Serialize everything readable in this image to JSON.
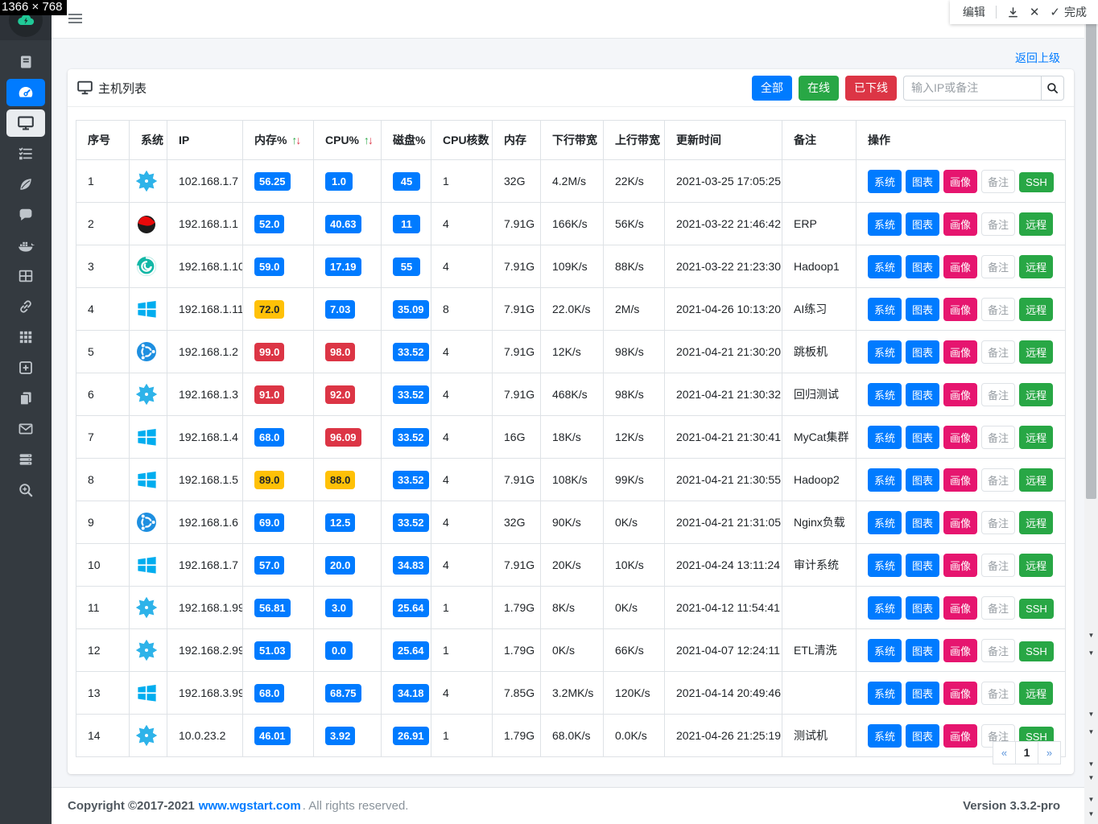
{
  "overlay": {
    "resolution_badge": "1366 × 768",
    "annotation_toolbar": {
      "edit": "编辑",
      "done": "完成"
    }
  },
  "colors": {
    "primary": "#007bff",
    "success": "#28a745",
    "danger": "#dc3545",
    "warning": "#ffc107",
    "pink": "#e6156f",
    "sidebar": "#343a40"
  },
  "sidebar": {
    "items": [
      {
        "id": "logbook",
        "state": ""
      },
      {
        "id": "dashboard",
        "state": "active"
      },
      {
        "id": "hosts",
        "state": "selected"
      },
      {
        "id": "tasks",
        "state": ""
      },
      {
        "id": "leaf",
        "state": ""
      },
      {
        "id": "chat",
        "state": ""
      },
      {
        "id": "docker",
        "state": ""
      },
      {
        "id": "grid-table",
        "state": ""
      },
      {
        "id": "link",
        "state": ""
      },
      {
        "id": "apps",
        "state": ""
      },
      {
        "id": "add-square",
        "state": ""
      },
      {
        "id": "copy",
        "state": ""
      },
      {
        "id": "mail",
        "state": ""
      },
      {
        "id": "servers",
        "state": ""
      },
      {
        "id": "zoom-search",
        "state": ""
      }
    ]
  },
  "page": {
    "back_link": "返回上级"
  },
  "card": {
    "title": "主机列表",
    "filters": [
      {
        "id": "all",
        "label": "全部",
        "color": "#007bff"
      },
      {
        "id": "online",
        "label": "在线",
        "color": "#28a745"
      },
      {
        "id": "offline",
        "label": "已下线",
        "color": "#dc3545"
      }
    ],
    "search": {
      "placeholder": "输入IP或备注"
    },
    "table": {
      "columns": [
        {
          "label": "序号"
        },
        {
          "label": "系统"
        },
        {
          "label": "IP"
        },
        {
          "label": "内存%",
          "sortable": true
        },
        {
          "label": "CPU%",
          "sortable": true
        },
        {
          "label": "磁盘%"
        },
        {
          "label": "CPU核数"
        },
        {
          "label": "内存"
        },
        {
          "label": "下行带宽"
        },
        {
          "label": "上行带宽"
        },
        {
          "label": "更新时间"
        },
        {
          "label": "备注"
        },
        {
          "label": "操作"
        }
      ],
      "action_labels": [
        "系统",
        "图表",
        "画像",
        "备注"
      ],
      "rows": [
        {
          "no": "1",
          "os": "star",
          "ip": "102.168.1.7",
          "mem": "56.25",
          "mem_level": "blue",
          "cpu": "1.0",
          "cpu_level": "blue",
          "disk": "45",
          "disk_level": "blue",
          "cores": "1",
          "ram": "32G",
          "down": "4.2M/s",
          "up": "22K/s",
          "updated": "2021-03-25 17:05:25",
          "note": "",
          "remote": "SSH"
        },
        {
          "no": "2",
          "os": "redhat",
          "ip": "192.168.1.1",
          "mem": "52.0",
          "mem_level": "blue",
          "cpu": "40.63",
          "cpu_level": "blue",
          "disk": "11",
          "disk_level": "blue",
          "cores": "4",
          "ram": "7.91G",
          "down": "166K/s",
          "up": "56K/s",
          "updated": "2021-03-22 21:46:42",
          "note": "ERP",
          "remote": "远程"
        },
        {
          "no": "3",
          "os": "deepin",
          "ip": "192.168.1.10",
          "mem": "59.0",
          "mem_level": "blue",
          "cpu": "17.19",
          "cpu_level": "blue",
          "disk": "55",
          "disk_level": "blue",
          "cores": "4",
          "ram": "7.91G",
          "down": "109K/s",
          "up": "88K/s",
          "updated": "2021-03-22 21:23:30",
          "note": "Hadoop1",
          "remote": "远程"
        },
        {
          "no": "4",
          "os": "windows",
          "ip": "192.168.1.11",
          "mem": "72.0",
          "mem_level": "yellow",
          "cpu": "7.03",
          "cpu_level": "blue",
          "disk": "35.09",
          "disk_level": "blue",
          "cores": "8",
          "ram": "7.91G",
          "down": "22.0K/s",
          "up": "2M/s",
          "updated": "2021-04-26 10:13:20",
          "note": "AI练习",
          "remote": "远程"
        },
        {
          "no": "5",
          "os": "ubuntu",
          "ip": "192.168.1.2",
          "mem": "99.0",
          "mem_level": "red",
          "cpu": "98.0",
          "cpu_level": "red",
          "disk": "33.52",
          "disk_level": "blue",
          "cores": "4",
          "ram": "7.91G",
          "down": "12K/s",
          "up": "98K/s",
          "updated": "2021-04-21 21:30:20",
          "note": "跳板机",
          "remote": "远程"
        },
        {
          "no": "6",
          "os": "star",
          "ip": "192.168.1.3",
          "mem": "91.0",
          "mem_level": "red",
          "cpu": "92.0",
          "cpu_level": "red",
          "disk": "33.52",
          "disk_level": "blue",
          "cores": "4",
          "ram": "7.91G",
          "down": "468K/s",
          "up": "98K/s",
          "updated": "2021-04-21 21:30:32",
          "note": "回归测试",
          "remote": "远程"
        },
        {
          "no": "7",
          "os": "windows",
          "ip": "192.168.1.4",
          "mem": "68.0",
          "mem_level": "blue",
          "cpu": "96.09",
          "cpu_level": "red",
          "disk": "33.52",
          "disk_level": "blue",
          "cores": "4",
          "ram": "16G",
          "down": "18K/s",
          "up": "12K/s",
          "updated": "2021-04-21 21:30:41",
          "note": "MyCat集群",
          "remote": "远程"
        },
        {
          "no": "8",
          "os": "windows",
          "ip": "192.168.1.5",
          "mem": "89.0",
          "mem_level": "yellow",
          "cpu": "88.0",
          "cpu_level": "yellow",
          "disk": "33.52",
          "disk_level": "blue",
          "cores": "4",
          "ram": "7.91G",
          "down": "108K/s",
          "up": "99K/s",
          "updated": "2021-04-21 21:30:55",
          "note": "Hadoop2",
          "remote": "远程"
        },
        {
          "no": "9",
          "os": "ubuntu",
          "ip": "192.168.1.6",
          "mem": "69.0",
          "mem_level": "blue",
          "cpu": "12.5",
          "cpu_level": "blue",
          "disk": "33.52",
          "disk_level": "blue",
          "cores": "4",
          "ram": "32G",
          "down": "90K/s",
          "up": "0K/s",
          "updated": "2021-04-21 21:31:05",
          "note": "Nginx负载",
          "remote": "远程"
        },
        {
          "no": "10",
          "os": "windows",
          "ip": "192.168.1.7",
          "mem": "57.0",
          "mem_level": "blue",
          "cpu": "20.0",
          "cpu_level": "blue",
          "disk": "34.83",
          "disk_level": "blue",
          "cores": "4",
          "ram": "7.91G",
          "down": "20K/s",
          "up": "10K/s",
          "updated": "2021-04-24 13:11:24",
          "note": "审计系统",
          "remote": "远程"
        },
        {
          "no": "11",
          "os": "star",
          "ip": "192.168.1.99",
          "mem": "56.81",
          "mem_level": "blue",
          "cpu": "3.0",
          "cpu_level": "blue",
          "disk": "25.64",
          "disk_level": "blue",
          "cores": "1",
          "ram": "1.79G",
          "down": "8K/s",
          "up": "0K/s",
          "updated": "2021-04-12 11:54:41",
          "note": "",
          "remote": "SSH"
        },
        {
          "no": "12",
          "os": "star",
          "ip": "192.168.2.99",
          "mem": "51.03",
          "mem_level": "blue",
          "cpu": "0.0",
          "cpu_level": "blue",
          "disk": "25.64",
          "disk_level": "blue",
          "cores": "1",
          "ram": "1.79G",
          "down": "0K/s",
          "up": "66K/s",
          "updated": "2021-04-07 12:24:11",
          "note": "ETL清洗",
          "remote": "SSH"
        },
        {
          "no": "13",
          "os": "windows",
          "ip": "192.168.3.99",
          "mem": "68.0",
          "mem_level": "blue",
          "cpu": "68.75",
          "cpu_level": "blue",
          "disk": "34.18",
          "disk_level": "blue",
          "cores": "4",
          "ram": "7.85G",
          "down": "3.2MK/s",
          "up": "120K/s",
          "updated": "2021-04-14 20:49:46",
          "note": "",
          "remote": "远程"
        },
        {
          "no": "14",
          "os": "star",
          "ip": "10.0.23.2",
          "mem": "46.01",
          "mem_level": "blue",
          "cpu": "3.92",
          "cpu_level": "blue",
          "disk": "26.91",
          "disk_level": "blue",
          "cores": "1",
          "ram": "1.79G",
          "down": "68.0K/s",
          "up": "0.0K/s",
          "updated": "2021-04-26 21:25:19",
          "note": "测试机",
          "remote": "SSH"
        }
      ]
    },
    "pagination": {
      "prev": "«",
      "page": "1",
      "next": "»"
    }
  },
  "footer": {
    "copyright": "Copyright ©2017-2021",
    "link": "www.wgstart.com",
    "suffix": ". All rights reserved.",
    "version": "Version 3.3.2-pro"
  }
}
